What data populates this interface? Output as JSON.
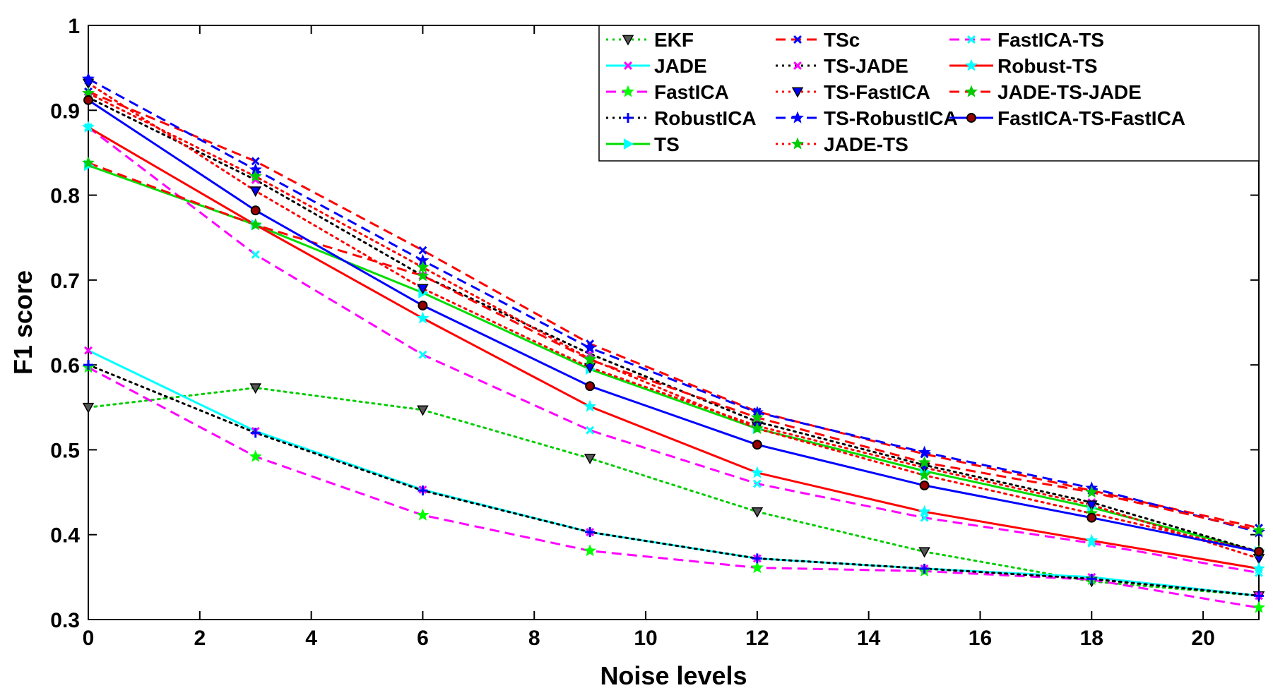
{
  "chart_data": {
    "type": "line",
    "xlabel": "Noise levels",
    "ylabel": "F1 score",
    "xlim": [
      0,
      21
    ],
    "ylim": [
      0.3,
      1
    ],
    "xticks": [
      0,
      2,
      4,
      6,
      8,
      10,
      12,
      14,
      16,
      18,
      20
    ],
    "yticks": [
      0.3,
      0.4,
      0.5,
      0.6,
      0.7,
      0.8,
      0.9,
      1
    ],
    "ytick_labels": [
      "0.3",
      "0.4",
      "0.5",
      "0.6",
      "0.7",
      "0.8",
      "0.9",
      "1"
    ],
    "grid": false,
    "legend_position": "top-right",
    "x": [
      0,
      3,
      6,
      9,
      12,
      15,
      18,
      21
    ],
    "series": [
      {
        "name": "EKF",
        "color": "#00cc00",
        "dash": "dot",
        "marker": "triangle-down",
        "marker_face": "#555555",
        "values": [
          0.55,
          0.573,
          0.547,
          0.49,
          0.427,
          0.38,
          0.345,
          0.328
        ]
      },
      {
        "name": "JADE",
        "color": "#00ffff",
        "dash": "solid",
        "marker": "x",
        "marker_face": "#ff00ff",
        "values": [
          0.617,
          0.522,
          0.453,
          0.403,
          0.372,
          0.36,
          0.35,
          0.328
        ]
      },
      {
        "name": "FastICA",
        "color": "#ff00ff",
        "dash": "dash",
        "marker": "star",
        "marker_face": "#00ff00",
        "values": [
          0.597,
          0.492,
          0.423,
          0.381,
          0.361,
          0.357,
          0.347,
          0.314
        ]
      },
      {
        "name": "RobustICA",
        "color": "#000000",
        "dash": "dot",
        "marker": "plus",
        "marker_face": "#0000ff",
        "values": [
          0.6,
          0.52,
          0.452,
          0.403,
          0.372,
          0.36,
          0.348,
          0.328
        ]
      },
      {
        "name": "TS",
        "color": "#00dd00",
        "dash": "solid",
        "marker": "triangle-right",
        "marker_face": "#00ffff",
        "values": [
          0.835,
          0.765,
          0.685,
          0.595,
          0.525,
          0.475,
          0.432,
          0.38
        ]
      },
      {
        "name": "TSc",
        "color": "#ff0000",
        "dash": "dash",
        "marker": "x",
        "marker_face": "#0000ff",
        "values": [
          0.922,
          0.84,
          0.735,
          0.625,
          0.545,
          0.495,
          0.452,
          0.408
        ]
      },
      {
        "name": "TS-JADE",
        "color": "#000000",
        "dash": "dot",
        "marker": "x",
        "marker_face": "#ff00ff",
        "values": [
          0.915,
          0.818,
          0.705,
          0.613,
          0.533,
          0.482,
          0.438,
          0.38
        ]
      },
      {
        "name": "TS-FastICA",
        "color": "#ff0000",
        "dash": "dot",
        "marker": "triangle-down",
        "marker_face": "#0000ff",
        "values": [
          0.932,
          0.805,
          0.69,
          0.597,
          0.528,
          0.479,
          0.435,
          0.372
        ]
      },
      {
        "name": "TS-RobustICA",
        "color": "#0000ff",
        "dash": "dash",
        "marker": "star",
        "marker_face": "#0000ff",
        "values": [
          0.937,
          0.83,
          0.723,
          0.62,
          0.544,
          0.497,
          0.455,
          0.403
        ]
      },
      {
        "name": "JADE-TS",
        "color": "#ff0000",
        "dash": "dot",
        "marker": "star",
        "marker_face": "#00cc00",
        "values": [
          0.92,
          0.822,
          0.715,
          0.607,
          0.525,
          0.47,
          0.425,
          0.38
        ]
      },
      {
        "name": "FastICA-TS",
        "color": "#ff00ff",
        "dash": "dash",
        "marker": "x",
        "marker_face": "#00ffff",
        "values": [
          0.88,
          0.73,
          0.612,
          0.523,
          0.46,
          0.42,
          0.39,
          0.355
        ]
      },
      {
        "name": "Robust-TS",
        "color": "#ff0000",
        "dash": "solid",
        "marker": "star",
        "marker_face": "#00ffff",
        "values": [
          0.88,
          0.765,
          0.655,
          0.551,
          0.473,
          0.427,
          0.393,
          0.36
        ]
      },
      {
        "name": "JADE-TS-JADE",
        "color": "#ff0000",
        "dash": "dash",
        "marker": "star",
        "marker_face": "#00cc00",
        "values": [
          0.838,
          0.765,
          0.705,
          0.606,
          0.538,
          0.485,
          0.45,
          0.405
        ]
      },
      {
        "name": "FastICA-TS-FastICA",
        "color": "#0000ff",
        "dash": "solid",
        "marker": "circle",
        "marker_face": "#990000",
        "values": [
          0.912,
          0.782,
          0.67,
          0.575,
          0.506,
          0.458,
          0.42,
          0.38
        ]
      }
    ]
  }
}
